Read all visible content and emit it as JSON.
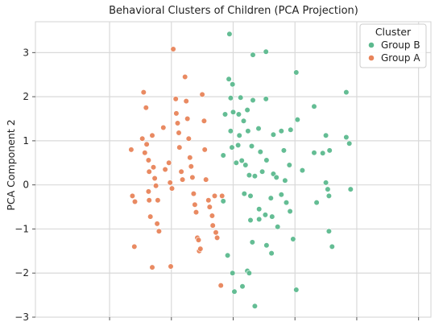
{
  "chart_data": {
    "type": "scatter",
    "title": "Behavioral Clusters of Children (PCA Projection)",
    "xlabel": "",
    "ylabel": "PCA Component 2",
    "xlim": [
      -3.2,
      3.2
    ],
    "ylim": [
      -3.0,
      3.7
    ],
    "y_ticks": [
      3,
      2,
      1,
      0,
      -1,
      -2,
      -3
    ],
    "x_gridlines": [
      -2,
      -1,
      0,
      1,
      2,
      3
    ],
    "grid": true,
    "legend": {
      "title": "Cluster",
      "placement": "top-right"
    },
    "series": [
      {
        "name": "Group B",
        "color": "#5cb98e",
        "points": [
          [
            -0.06,
            3.42
          ],
          [
            0.32,
            2.95
          ],
          [
            0.53,
            3.02
          ],
          [
            -0.07,
            2.4
          ],
          [
            -0.01,
            2.28
          ],
          [
            -0.04,
            1.97
          ],
          [
            0.12,
            1.98
          ],
          [
            0.32,
            1.92
          ],
          [
            0.53,
            1.95
          ],
          [
            1.02,
            2.55
          ],
          [
            1.83,
            2.1
          ],
          [
            0.23,
            1.7
          ],
          [
            0.09,
            1.6
          ],
          [
            0.0,
            1.65
          ],
          [
            0.17,
            1.45
          ],
          [
            -0.13,
            1.6
          ],
          [
            -0.04,
            1.22
          ],
          [
            0.1,
            1.12
          ],
          [
            0.24,
            1.22
          ],
          [
            0.41,
            1.28
          ],
          [
            0.65,
            1.14
          ],
          [
            0.78,
            1.22
          ],
          [
            0.93,
            1.25
          ],
          [
            1.04,
            1.48
          ],
          [
            1.31,
            1.78
          ],
          [
            1.5,
            1.12
          ],
          [
            1.83,
            1.08
          ],
          [
            1.88,
            0.94
          ],
          [
            -0.16,
            0.67
          ],
          [
            -0.02,
            0.85
          ],
          [
            0.08,
            0.9
          ],
          [
            0.14,
            0.55
          ],
          [
            0.3,
            0.88
          ],
          [
            0.44,
            0.75
          ],
          [
            0.54,
            0.56
          ],
          [
            0.82,
            0.78
          ],
          [
            0.91,
            0.45
          ],
          [
            1.12,
            0.33
          ],
          [
            1.31,
            0.73
          ],
          [
            1.45,
            0.72
          ],
          [
            1.56,
            0.78
          ],
          [
            0.05,
            0.5
          ],
          [
            0.2,
            0.45
          ],
          [
            0.26,
            0.22
          ],
          [
            0.35,
            0.2
          ],
          [
            0.47,
            0.3
          ],
          [
            0.65,
            0.25
          ],
          [
            0.7,
            0.17
          ],
          [
            0.84,
            0.1
          ],
          [
            1.5,
            0.05
          ],
          [
            1.53,
            -0.1
          ],
          [
            1.9,
            -0.1
          ],
          [
            0.18,
            -0.2
          ],
          [
            0.28,
            -0.25
          ],
          [
            0.42,
            -0.55
          ],
          [
            0.52,
            -0.68
          ],
          [
            0.61,
            -0.3
          ],
          [
            0.78,
            -0.22
          ],
          [
            0.86,
            -0.4
          ],
          [
            0.92,
            -0.6
          ],
          [
            1.35,
            -0.4
          ],
          [
            1.55,
            -0.25
          ],
          [
            -0.16,
            -0.37
          ],
          [
            0.28,
            -0.8
          ],
          [
            0.42,
            -0.78
          ],
          [
            0.63,
            -0.72
          ],
          [
            0.72,
            -0.95
          ],
          [
            0.31,
            -1.3
          ],
          [
            0.54,
            -1.37
          ],
          [
            0.62,
            -1.55
          ],
          [
            0.97,
            -1.23
          ],
          [
            1.55,
            -1.05
          ],
          [
            1.6,
            -1.4
          ],
          [
            0.23,
            -1.95
          ],
          [
            0.26,
            -2.0
          ],
          [
            0.15,
            -2.3
          ],
          [
            0.02,
            -2.42
          ],
          [
            -0.09,
            -1.6
          ],
          [
            -0.01,
            -2.0
          ],
          [
            0.35,
            -2.75
          ],
          [
            1.02,
            -2.38
          ]
        ]
      },
      {
        "name": "Group A",
        "color": "#e8845a",
        "points": [
          [
            -1.65,
            0.8
          ],
          [
            -1.63,
            -0.25
          ],
          [
            -1.59,
            -0.38
          ],
          [
            -1.6,
            -1.4
          ],
          [
            -1.45,
            2.1
          ],
          [
            -1.47,
            1.05
          ],
          [
            -1.43,
            0.73
          ],
          [
            -1.4,
            0.92
          ],
          [
            -1.37,
            0.56
          ],
          [
            -1.36,
            0.3
          ],
          [
            -1.37,
            -0.15
          ],
          [
            -1.36,
            -0.35
          ],
          [
            -1.34,
            -0.72
          ],
          [
            -1.41,
            1.75
          ],
          [
            -1.31,
            1.12
          ],
          [
            -1.29,
            0.4
          ],
          [
            -1.27,
            0.15
          ],
          [
            -1.25,
            -0.02
          ],
          [
            -1.22,
            -0.35
          ],
          [
            -1.23,
            -0.88
          ],
          [
            -1.2,
            -1.05
          ],
          [
            -1.31,
            -1.87
          ],
          [
            -1.13,
            1.3
          ],
          [
            -1.1,
            0.35
          ],
          [
            -1.04,
            0.5
          ],
          [
            -1.02,
            0.05
          ],
          [
            -0.99,
            -0.08
          ],
          [
            -1.01,
            -1.85
          ],
          [
            -0.97,
            3.08
          ],
          [
            -0.93,
            1.95
          ],
          [
            -0.92,
            1.62
          ],
          [
            -0.9,
            1.4
          ],
          [
            -0.88,
            1.18
          ],
          [
            -0.87,
            0.85
          ],
          [
            -0.84,
            0.3
          ],
          [
            -0.82,
            0.12
          ],
          [
            -0.78,
            2.45
          ],
          [
            -0.76,
            1.9
          ],
          [
            -0.74,
            1.5
          ],
          [
            -0.72,
            1.05
          ],
          [
            -0.7,
            0.62
          ],
          [
            -0.68,
            0.42
          ],
          [
            -0.66,
            0.17
          ],
          [
            -0.64,
            -0.2
          ],
          [
            -0.62,
            -0.45
          ],
          [
            -0.6,
            -0.62
          ],
          [
            -0.58,
            -1.2
          ],
          [
            -0.56,
            -1.25
          ],
          [
            -0.55,
            -1.5
          ],
          [
            -0.53,
            -1.45
          ],
          [
            -0.5,
            2.05
          ],
          [
            -0.47,
            1.45
          ],
          [
            -0.46,
            0.8
          ],
          [
            -0.44,
            0.12
          ],
          [
            -0.4,
            -0.35
          ],
          [
            -0.38,
            -0.5
          ],
          [
            -0.34,
            -0.7
          ],
          [
            -0.33,
            -0.92
          ],
          [
            -0.3,
            -0.25
          ],
          [
            -0.28,
            -1.08
          ],
          [
            -0.26,
            -1.2
          ],
          [
            -0.2,
            -2.28
          ],
          [
            -0.18,
            -0.25
          ]
        ]
      }
    ]
  }
}
